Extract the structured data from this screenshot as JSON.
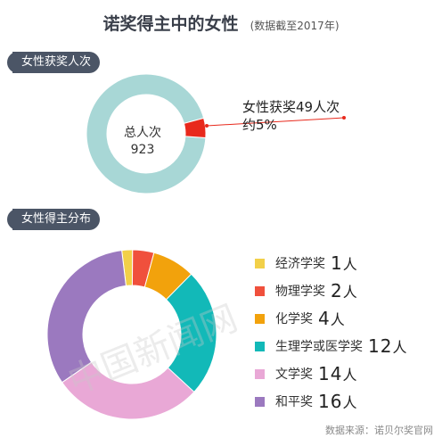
{
  "title": "诺奖得主中的女性",
  "subtitle": "(数据截至2017年)",
  "section1_label": "女性获奖人次",
  "section2_label": "女性得主分布",
  "colors": {
    "physics": "#f0503c",
    "chemistry": "#f2a20c",
    "medicine": "#12b9b8",
    "literature": "#e9a8d6",
    "peace": "#9b79bf",
    "economics": "#f2d049",
    "ring_base": "#a8d7d6",
    "ring_women": "#e8291c"
  },
  "chart_data": [
    {
      "type": "pie",
      "center_line1": "总人次",
      "center_line2": "923",
      "total": 923,
      "women": 49,
      "callout_line1": "女性获奖49人次",
      "callout_line2": "约5%"
    },
    {
      "type": "pie",
      "categories": [
        "经济学奖",
        "物理学奖",
        "化学奖",
        "生理学或医学奖",
        "文学奖",
        "和平奖"
      ],
      "values": [
        1,
        2,
        4,
        12,
        14,
        16
      ],
      "value_labels": [
        "1",
        "2",
        "4",
        "12",
        "14",
        "16"
      ],
      "unit": "人",
      "colors": [
        "#f2d049",
        "#f0503c",
        "#f2a20c",
        "#12b9b8",
        "#e9a8d6",
        "#9b79bf"
      ]
    }
  ],
  "watermark": "中国新闻网",
  "source": "数据来源：诺贝尔奖官网"
}
